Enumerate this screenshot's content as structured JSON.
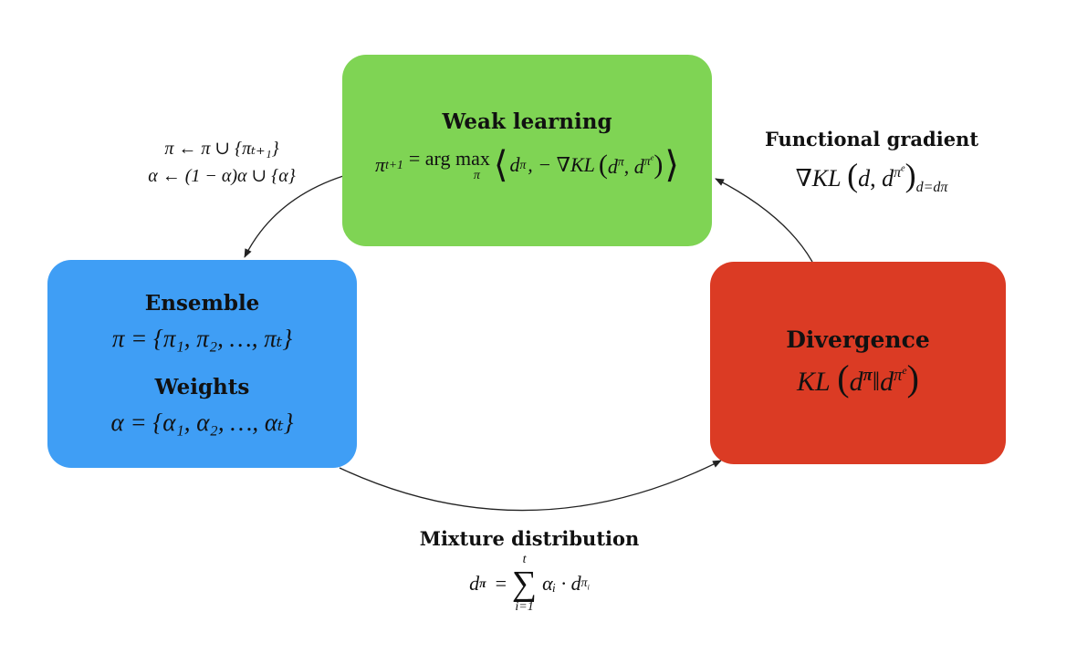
{
  "weak_learning": {
    "title": "Weak learning",
    "lhs": "π",
    "lhs_sub": "t+1",
    "op": "= arg max",
    "argmax_sub": "π",
    "inner": "d",
    "inner_sup": "π",
    "grad": ", − ∇KL",
    "open_angle": "⟨",
    "close_angle": "⟩"
  },
  "ensemble": {
    "title": "Ensemble",
    "formula": "π = {π₁, π₂, …, πₜ}",
    "weights_title": "Weights",
    "weights_formula": "α = {α₁, α₂, …, αₜ}"
  },
  "divergence": {
    "title": "Divergence",
    "formula": "KL"
  },
  "update_rule": {
    "line1": "π ← π ∪ {πₜ₊₁}",
    "line2": "α ← (1 − α)α ∪ {α}"
  },
  "functional_gradient": {
    "title": "Functional gradient",
    "formula": "∇KL",
    "eval_sub": "d=dπ"
  },
  "mixture": {
    "title": "Mixture distribution",
    "lhs": "d",
    "sum_top": "t",
    "sum_bottom": "i=1",
    "term": "αᵢ · d"
  }
}
